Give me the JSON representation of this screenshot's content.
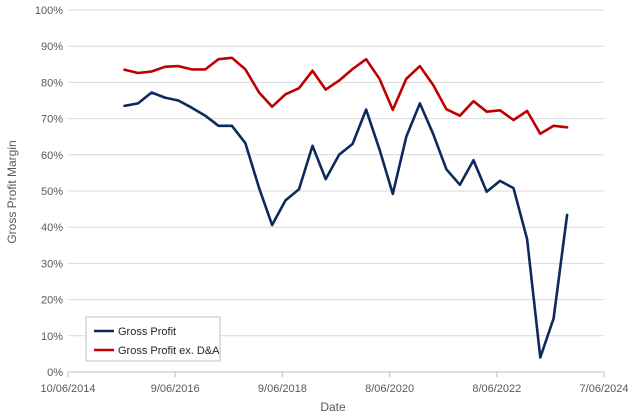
{
  "chart_data": {
    "type": "line",
    "xlabel": "Date",
    "ylabel": "Gross Profit Margin",
    "x_axis": {
      "scale": "date",
      "range": [
        "2014-06-10",
        "2024-06-07"
      ],
      "ticks": [
        {
          "value": "2014-06-10",
          "label": "10/06/2014"
        },
        {
          "value": "2016-06-09",
          "label": "9/06/2016"
        },
        {
          "value": "2018-06-09",
          "label": "9/06/2018"
        },
        {
          "value": "2020-06-08",
          "label": "8/06/2020"
        },
        {
          "value": "2022-06-08",
          "label": "8/06/2022"
        },
        {
          "value": "2024-06-07",
          "label": "7/06/2024"
        }
      ]
    },
    "y_axis": {
      "range": [
        0,
        100
      ],
      "unit": "%",
      "ticks": [
        {
          "value": 0,
          "label": "0%"
        },
        {
          "value": 10,
          "label": "10%"
        },
        {
          "value": 20,
          "label": "20%"
        },
        {
          "value": 30,
          "label": "30%"
        },
        {
          "value": 40,
          "label": "40%"
        },
        {
          "value": 50,
          "label": "50%"
        },
        {
          "value": 60,
          "label": "60%"
        },
        {
          "value": 70,
          "label": "70%"
        },
        {
          "value": 80,
          "label": "80%"
        },
        {
          "value": 90,
          "label": "90%"
        },
        {
          "value": 100,
          "label": "100%"
        }
      ]
    },
    "grid": "horizontal",
    "legend": "bottom-left",
    "series": [
      {
        "name": "Gross Profit",
        "color": "#0d2a5e",
        "points": [
          {
            "x": "2015-06-30",
            "y": 73.5
          },
          {
            "x": "2015-09-30",
            "y": 74.2
          },
          {
            "x": "2015-12-31",
            "y": 77.2
          },
          {
            "x": "2016-03-31",
            "y": 75.8
          },
          {
            "x": "2016-06-30",
            "y": 75.0
          },
          {
            "x": "2016-09-30",
            "y": 73.0
          },
          {
            "x": "2016-12-31",
            "y": 70.8
          },
          {
            "x": "2017-03-31",
            "y": 68.0
          },
          {
            "x": "2017-06-30",
            "y": 68.0
          },
          {
            "x": "2017-09-30",
            "y": 63.2
          },
          {
            "x": "2017-12-31",
            "y": 51.0
          },
          {
            "x": "2018-03-31",
            "y": 40.6
          },
          {
            "x": "2018-06-30",
            "y": 47.4
          },
          {
            "x": "2018-09-30",
            "y": 50.5
          },
          {
            "x": "2018-12-31",
            "y": 62.5
          },
          {
            "x": "2019-03-31",
            "y": 53.3
          },
          {
            "x": "2019-06-30",
            "y": 60.0
          },
          {
            "x": "2019-09-30",
            "y": 63.0
          },
          {
            "x": "2019-12-31",
            "y": 72.5
          },
          {
            "x": "2020-03-31",
            "y": 61.5
          },
          {
            "x": "2020-06-30",
            "y": 49.2
          },
          {
            "x": "2020-09-30",
            "y": 65.0
          },
          {
            "x": "2020-12-31",
            "y": 74.2
          },
          {
            "x": "2021-03-31",
            "y": 65.8
          },
          {
            "x": "2021-06-30",
            "y": 56.0
          },
          {
            "x": "2021-09-30",
            "y": 51.7
          },
          {
            "x": "2021-12-31",
            "y": 58.5
          },
          {
            "x": "2022-03-31",
            "y": 49.8
          },
          {
            "x": "2022-06-30",
            "y": 52.8
          },
          {
            "x": "2022-09-30",
            "y": 50.8
          },
          {
            "x": "2022-12-31",
            "y": 36.7
          },
          {
            "x": "2023-03-31",
            "y": 4.0
          },
          {
            "x": "2023-06-30",
            "y": 14.8
          },
          {
            "x": "2023-09-30",
            "y": 43.4
          }
        ]
      },
      {
        "name": "Gross Profit ex. D&A",
        "color": "#c00000",
        "points": [
          {
            "x": "2015-06-30",
            "y": 83.5
          },
          {
            "x": "2015-09-30",
            "y": 82.6
          },
          {
            "x": "2015-12-31",
            "y": 83.0
          },
          {
            "x": "2016-03-31",
            "y": 84.3
          },
          {
            "x": "2016-06-30",
            "y": 84.5
          },
          {
            "x": "2016-09-30",
            "y": 83.6
          },
          {
            "x": "2016-12-31",
            "y": 83.6
          },
          {
            "x": "2017-03-31",
            "y": 86.4
          },
          {
            "x": "2017-06-30",
            "y": 86.8
          },
          {
            "x": "2017-09-30",
            "y": 83.6
          },
          {
            "x": "2017-12-31",
            "y": 77.3
          },
          {
            "x": "2018-03-31",
            "y": 73.3
          },
          {
            "x": "2018-06-30",
            "y": 76.7
          },
          {
            "x": "2018-09-30",
            "y": 78.4
          },
          {
            "x": "2018-12-31",
            "y": 83.2
          },
          {
            "x": "2019-03-31",
            "y": 78.0
          },
          {
            "x": "2019-06-30",
            "y": 80.5
          },
          {
            "x": "2019-09-30",
            "y": 83.7
          },
          {
            "x": "2019-12-31",
            "y": 86.4
          },
          {
            "x": "2020-03-31",
            "y": 81.0
          },
          {
            "x": "2020-06-30",
            "y": 72.4
          },
          {
            "x": "2020-09-30",
            "y": 81.0
          },
          {
            "x": "2020-12-31",
            "y": 84.5
          },
          {
            "x": "2021-03-31",
            "y": 79.3
          },
          {
            "x": "2021-06-30",
            "y": 72.6
          },
          {
            "x": "2021-09-30",
            "y": 70.8
          },
          {
            "x": "2021-12-31",
            "y": 74.8
          },
          {
            "x": "2022-03-31",
            "y": 71.9
          },
          {
            "x": "2022-06-30",
            "y": 72.3
          },
          {
            "x": "2022-09-30",
            "y": 69.6
          },
          {
            "x": "2022-12-31",
            "y": 72.1
          },
          {
            "x": "2023-03-31",
            "y": 65.8
          },
          {
            "x": "2023-06-30",
            "y": 68.0
          },
          {
            "x": "2023-09-30",
            "y": 67.6
          }
        ]
      }
    ],
    "colors": {
      "gridline": "#d9d9d9",
      "axis": "#bfbfbf",
      "legend_border": "#bfbfbf"
    }
  }
}
